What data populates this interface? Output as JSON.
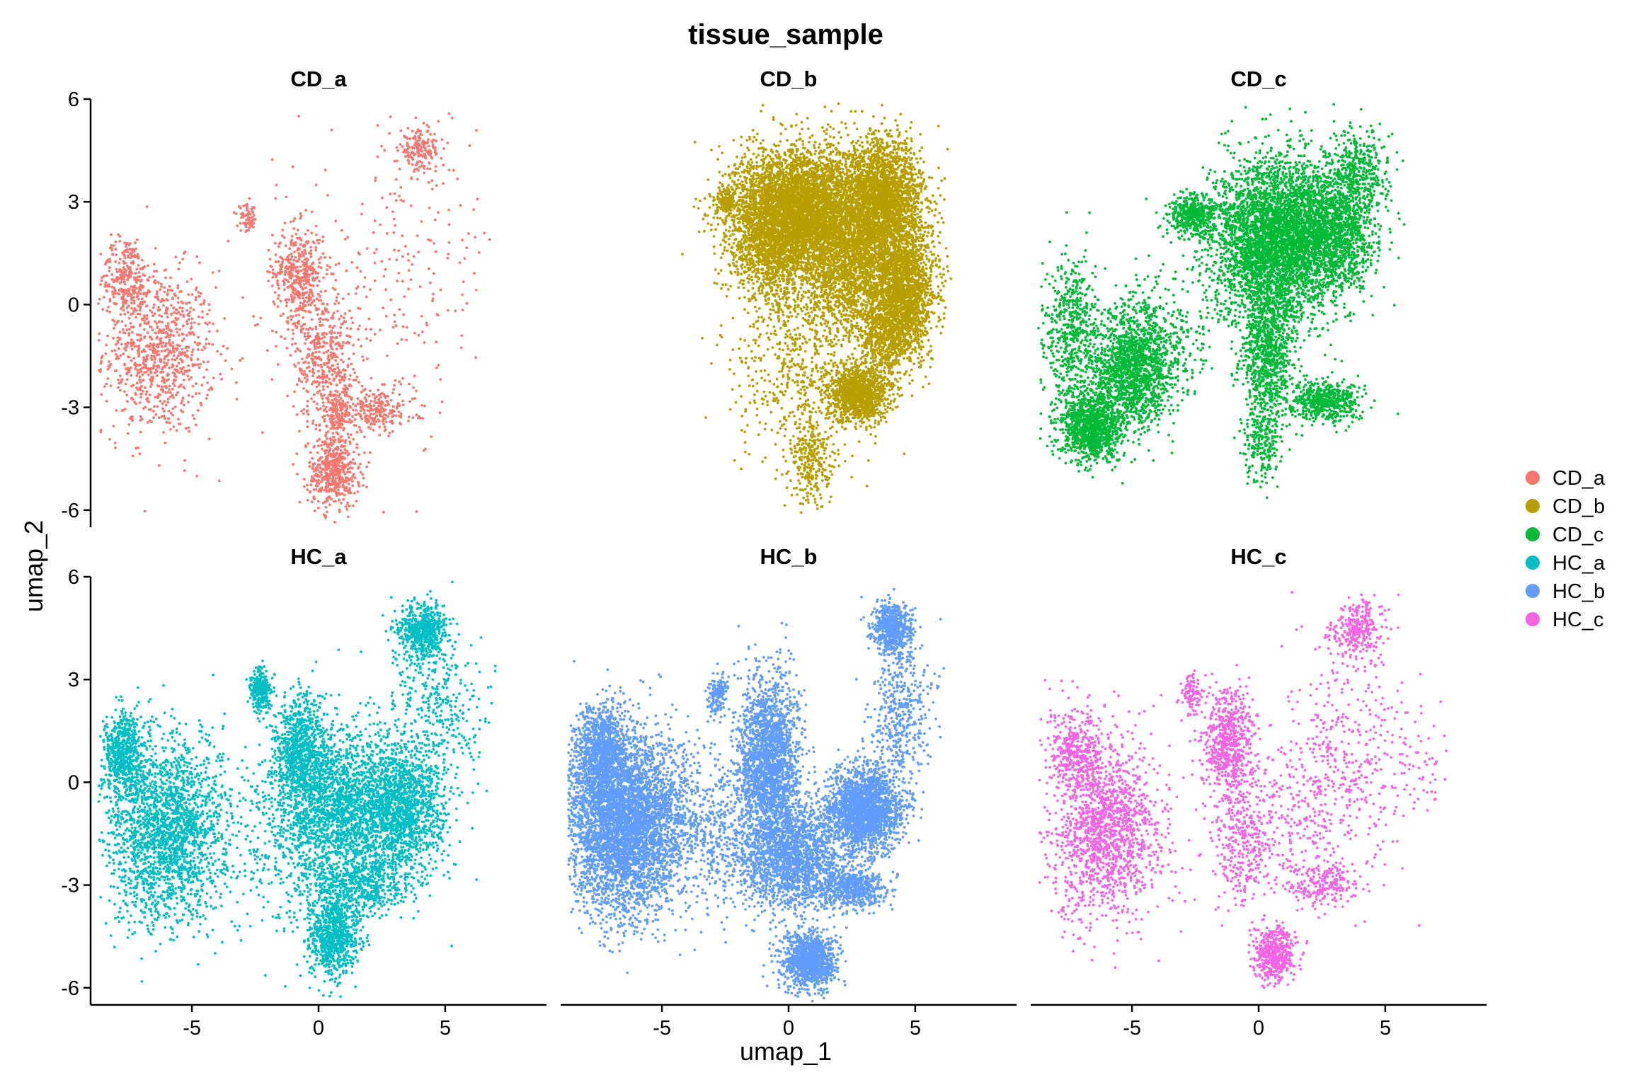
{
  "chart_data": {
    "type": "scatter",
    "title": "tissue_sample",
    "xlabel": "umap_1",
    "ylabel": "umap_2",
    "xlim": [
      -9,
      9
    ],
    "ylim": [
      -6.5,
      6
    ],
    "x_ticks": [
      -5,
      0,
      5
    ],
    "y_ticks": [
      -6,
      -3,
      0,
      3,
      6
    ],
    "grid": false,
    "legend_position": "right",
    "facets": [
      {
        "name": "CD_a",
        "color": "#F8766D",
        "n": 3300,
        "clusters": [
          {
            "x": -6.3,
            "y": -1.4,
            "sx": 1.1,
            "sy": 1.2,
            "w": 0.26
          },
          {
            "x": -7.6,
            "y": 0.8,
            "sx": 0.5,
            "sy": 0.6,
            "w": 0.08
          },
          {
            "x": -0.8,
            "y": 0.9,
            "sx": 0.5,
            "sy": 0.7,
            "w": 0.12
          },
          {
            "x": 0.2,
            "y": -1.5,
            "sx": 0.6,
            "sy": 1.0,
            "w": 0.12
          },
          {
            "x": 0.6,
            "y": -4.9,
            "sx": 0.5,
            "sy": 0.5,
            "w": 0.14
          },
          {
            "x": 0.8,
            "y": -3.2,
            "sx": 0.4,
            "sy": 0.5,
            "w": 0.06
          },
          {
            "x": 2.4,
            "y": -3.1,
            "sx": 0.7,
            "sy": 0.3,
            "w": 0.06
          },
          {
            "x": 4.0,
            "y": 4.5,
            "sx": 0.4,
            "sy": 0.3,
            "w": 0.05
          },
          {
            "x": -2.8,
            "y": 2.5,
            "sx": 0.2,
            "sy": 0.2,
            "w": 0.02
          },
          {
            "x": 3.5,
            "y": 1.5,
            "sx": 1.8,
            "sy": 2.2,
            "w": 0.05
          },
          {
            "x": 1.0,
            "y": -0.5,
            "sx": 2.0,
            "sy": 2.0,
            "w": 0.04
          }
        ]
      },
      {
        "name": "CD_b",
        "color": "#B79F00",
        "n": 14000,
        "clusters": [
          {
            "x": 0.5,
            "y": 2.8,
            "sx": 1.3,
            "sy": 0.9,
            "w": 0.3
          },
          {
            "x": 3.7,
            "y": 3.0,
            "sx": 0.8,
            "sy": 0.9,
            "w": 0.18
          },
          {
            "x": 4.6,
            "y": 0.4,
            "sx": 0.6,
            "sy": 0.9,
            "w": 0.12
          },
          {
            "x": 2.5,
            "y": 1.0,
            "sx": 1.1,
            "sy": 1.0,
            "w": 0.12
          },
          {
            "x": -0.7,
            "y": 1.8,
            "sx": 0.8,
            "sy": 0.8,
            "w": 0.08
          },
          {
            "x": 2.8,
            "y": -2.6,
            "sx": 0.6,
            "sy": 0.4,
            "w": 0.08
          },
          {
            "x": 0.5,
            "y": -1.5,
            "sx": 1.4,
            "sy": 1.5,
            "w": 0.05
          },
          {
            "x": 0.8,
            "y": -4.6,
            "sx": 0.4,
            "sy": 0.7,
            "w": 0.02
          },
          {
            "x": 3.8,
            "y": -0.9,
            "sx": 0.5,
            "sy": 0.6,
            "w": 0.04
          },
          {
            "x": -2.5,
            "y": 3.0,
            "sx": 0.2,
            "sy": 0.2,
            "w": 0.01
          }
        ]
      },
      {
        "name": "CD_c",
        "color": "#00BA38",
        "n": 11000,
        "clusters": [
          {
            "x": 0.6,
            "y": 1.8,
            "sx": 1.2,
            "sy": 1.2,
            "w": 0.34
          },
          {
            "x": 2.9,
            "y": 2.2,
            "sx": 0.9,
            "sy": 0.9,
            "w": 0.14
          },
          {
            "x": -2.6,
            "y": 2.6,
            "sx": 0.5,
            "sy": 0.3,
            "w": 0.04
          },
          {
            "x": -5.0,
            "y": -1.9,
            "sx": 0.8,
            "sy": 0.9,
            "w": 0.14
          },
          {
            "x": -6.6,
            "y": -3.6,
            "sx": 0.6,
            "sy": 0.5,
            "w": 0.1
          },
          {
            "x": -7.4,
            "y": -0.8,
            "sx": 0.6,
            "sy": 1.1,
            "w": 0.05
          },
          {
            "x": 0.3,
            "y": -1.5,
            "sx": 0.5,
            "sy": 1.0,
            "w": 0.07
          },
          {
            "x": 2.6,
            "y": -2.8,
            "sx": 0.7,
            "sy": 0.3,
            "w": 0.05
          },
          {
            "x": 4.0,
            "y": 4.0,
            "sx": 0.6,
            "sy": 0.6,
            "w": 0.03
          },
          {
            "x": 0.2,
            "y": -4.0,
            "sx": 0.4,
            "sy": 0.6,
            "w": 0.02
          },
          {
            "x": -3.5,
            "y": -1.0,
            "sx": 1.0,
            "sy": 0.8,
            "w": 0.02
          }
        ]
      },
      {
        "name": "HC_a",
        "color": "#00BFC4",
        "n": 9500,
        "clusters": [
          {
            "x": -6.0,
            "y": -1.4,
            "sx": 1.2,
            "sy": 1.3,
            "w": 0.22
          },
          {
            "x": -7.7,
            "y": 0.9,
            "sx": 0.4,
            "sy": 0.6,
            "w": 0.06
          },
          {
            "x": -0.7,
            "y": 1.0,
            "sx": 0.5,
            "sy": 0.8,
            "w": 0.08
          },
          {
            "x": 1.0,
            "y": -0.8,
            "sx": 1.4,
            "sy": 1.1,
            "w": 0.22
          },
          {
            "x": 3.4,
            "y": -0.8,
            "sx": 0.8,
            "sy": 0.9,
            "w": 0.12
          },
          {
            "x": 0.6,
            "y": -4.5,
            "sx": 0.5,
            "sy": 0.6,
            "w": 0.08
          },
          {
            "x": 4.1,
            "y": 4.4,
            "sx": 0.5,
            "sy": 0.4,
            "w": 0.06
          },
          {
            "x": 4.6,
            "y": 2.0,
            "sx": 1.0,
            "sy": 1.3,
            "w": 0.04
          },
          {
            "x": -2.3,
            "y": 2.7,
            "sx": 0.2,
            "sy": 0.3,
            "w": 0.03
          },
          {
            "x": 1.8,
            "y": -3.0,
            "sx": 1.0,
            "sy": 0.4,
            "w": 0.05
          },
          {
            "x": -1.0,
            "y": -2.0,
            "sx": 1.5,
            "sy": 1.5,
            "w": 0.04
          }
        ]
      },
      {
        "name": "HC_b",
        "color": "#619CFF",
        "n": 14500,
        "clusters": [
          {
            "x": -6.5,
            "y": -1.2,
            "sx": 1.2,
            "sy": 1.3,
            "w": 0.3
          },
          {
            "x": -7.4,
            "y": 0.9,
            "sx": 0.5,
            "sy": 0.7,
            "w": 0.06
          },
          {
            "x": -0.8,
            "y": 0.6,
            "sx": 0.6,
            "sy": 1.2,
            "w": 0.14
          },
          {
            "x": 0.2,
            "y": -2.2,
            "sx": 1.0,
            "sy": 0.8,
            "w": 0.12
          },
          {
            "x": 3.0,
            "y": -0.8,
            "sx": 0.7,
            "sy": 0.6,
            "w": 0.14
          },
          {
            "x": 0.8,
            "y": -5.2,
            "sx": 0.5,
            "sy": 0.4,
            "w": 0.08
          },
          {
            "x": 4.1,
            "y": 4.5,
            "sx": 0.4,
            "sy": 0.4,
            "w": 0.04
          },
          {
            "x": 4.4,
            "y": 2.0,
            "sx": 0.6,
            "sy": 1.1,
            "w": 0.03
          },
          {
            "x": 2.5,
            "y": -3.1,
            "sx": 0.7,
            "sy": 0.3,
            "w": 0.04
          },
          {
            "x": -2.8,
            "y": 2.6,
            "sx": 0.2,
            "sy": 0.3,
            "w": 0.01
          },
          {
            "x": -3.0,
            "y": -1.5,
            "sx": 1.2,
            "sy": 1.2,
            "w": 0.04
          }
        ]
      },
      {
        "name": "HC_c",
        "color": "#F564E3",
        "n": 4500,
        "clusters": [
          {
            "x": -6.0,
            "y": -1.4,
            "sx": 1.1,
            "sy": 1.3,
            "w": 0.3
          },
          {
            "x": -7.2,
            "y": 0.9,
            "sx": 0.6,
            "sy": 0.6,
            "w": 0.08
          },
          {
            "x": -1.2,
            "y": 1.2,
            "sx": 0.5,
            "sy": 0.8,
            "w": 0.12
          },
          {
            "x": -0.7,
            "y": -1.8,
            "sx": 0.6,
            "sy": 0.9,
            "w": 0.06
          },
          {
            "x": 0.6,
            "y": -5.0,
            "sx": 0.4,
            "sy": 0.4,
            "w": 0.09
          },
          {
            "x": 3.9,
            "y": 4.5,
            "sx": 0.5,
            "sy": 0.4,
            "w": 0.06
          },
          {
            "x": 3.8,
            "y": 1.0,
            "sx": 1.2,
            "sy": 1.6,
            "w": 0.06
          },
          {
            "x": 1.5,
            "y": -0.8,
            "sx": 1.5,
            "sy": 1.3,
            "w": 0.08
          },
          {
            "x": -2.7,
            "y": 2.6,
            "sx": 0.2,
            "sy": 0.3,
            "w": 0.02
          },
          {
            "x": 2.6,
            "y": -3.0,
            "sx": 0.7,
            "sy": 0.3,
            "w": 0.04
          },
          {
            "x": 6.3,
            "y": 0.5,
            "sx": 0.8,
            "sy": 0.8,
            "w": 0.01
          }
        ]
      }
    ],
    "legend": [
      {
        "label": "CD_a",
        "color": "#F8766D"
      },
      {
        "label": "CD_b",
        "color": "#B79F00"
      },
      {
        "label": "CD_c",
        "color": "#00BA38"
      },
      {
        "label": "HC_a",
        "color": "#00BFC4"
      },
      {
        "label": "HC_b",
        "color": "#619CFF"
      },
      {
        "label": "HC_c",
        "color": "#F564E3"
      }
    ]
  }
}
